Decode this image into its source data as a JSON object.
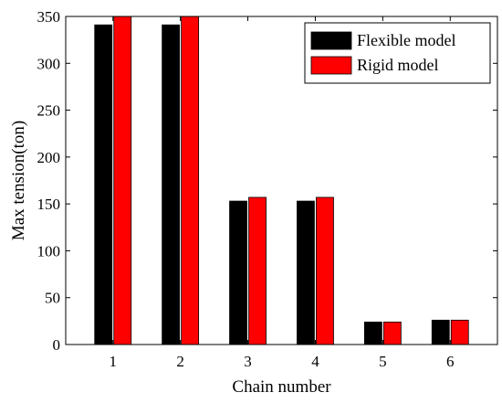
{
  "chart_data": {
    "type": "bar",
    "categories": [
      "1",
      "2",
      "3",
      "4",
      "5",
      "6"
    ],
    "series": [
      {
        "name": "Flexible model",
        "color": "#000000",
        "values": [
          341,
          341,
          153,
          153,
          24,
          26
        ]
      },
      {
        "name": "Rigid model",
        "color": "#ff0000",
        "values": [
          350,
          350,
          157,
          157,
          24,
          26
        ]
      }
    ],
    "xlabel": "Chain number",
    "ylabel": "Max tension(ton)",
    "ylim": [
      0,
      350
    ],
    "yticks": [
      0,
      50,
      100,
      150,
      200,
      250,
      300,
      350
    ],
    "grid": false,
    "legend_position": "top-right"
  }
}
